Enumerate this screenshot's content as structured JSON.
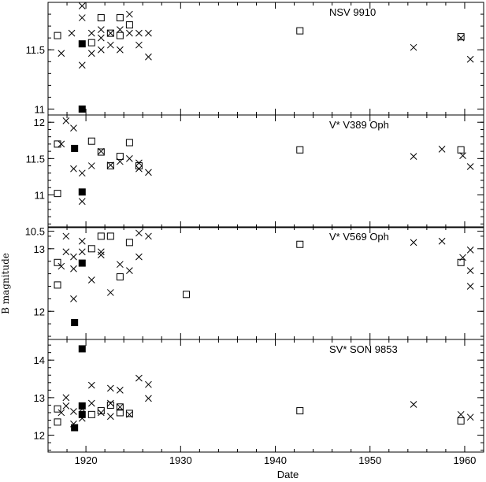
{
  "chart_data": {
    "type": "scatter",
    "xlabel": "Date",
    "ylabel": "B magnitude",
    "xlim": [
      1916,
      1962
    ],
    "x_ticks": [
      1920,
      1930,
      1940,
      1950,
      1960
    ],
    "y_inverted": true,
    "marker_legend": {
      "x": "cross",
      "open": "open square",
      "filled": "filled square"
    },
    "panels": [
      {
        "label": "NSV 9910",
        "ylim": [
          10.95,
          11.9
        ],
        "y_ticks": [
          11,
          11.5
        ],
        "y_tick_labels": [
          "11",
          "11.5"
        ],
        "series": [
          {
            "marker": "cross",
            "points": [
              [
                1917.4,
                11.47
              ],
              [
                1918.5,
                11.64
              ],
              [
                1919.6,
                11.87
              ],
              [
                1919.6,
                11.77
              ],
              [
                1919.6,
                11.37
              ],
              [
                1920.6,
                11.64
              ],
              [
                1920.6,
                11.47
              ],
              [
                1921.6,
                11.67
              ],
              [
                1921.6,
                11.6
              ],
              [
                1921.6,
                11.5
              ],
              [
                1922.6,
                11.64
              ],
              [
                1922.6,
                11.54
              ],
              [
                1923.6,
                11.67
              ],
              [
                1923.6,
                11.5
              ],
              [
                1924.6,
                11.8
              ],
              [
                1924.6,
                11.64
              ],
              [
                1925.6,
                11.64
              ],
              [
                1925.6,
                11.54
              ],
              [
                1926.6,
                11.64
              ],
              [
                1926.6,
                11.44
              ],
              [
                1954.6,
                11.52
              ],
              [
                1959.6,
                11.6
              ],
              [
                1960.6,
                11.42
              ]
            ]
          },
          {
            "marker": "open",
            "points": [
              [
                1917.0,
                11.62
              ],
              [
                1920.6,
                11.56
              ],
              [
                1921.6,
                11.77
              ],
              [
                1922.6,
                11.64
              ],
              [
                1923.6,
                11.77
              ],
              [
                1923.6,
                11.62
              ],
              [
                1924.6,
                11.71
              ],
              [
                1942.6,
                11.66
              ],
              [
                1959.6,
                11.61
              ]
            ]
          },
          {
            "marker": "filled",
            "points": [
              [
                1919.6,
                11.55
              ],
              [
                1919.6,
                11.0
              ]
            ]
          }
        ]
      },
      {
        "label": "V* V389 Oph",
        "ylim": [
          10.55,
          12.1
        ],
        "y_ticks": [
          10.5,
          11,
          11.5,
          12
        ],
        "y_tick_labels": [
          "10.5",
          "11",
          "11.5",
          "12"
        ],
        "series": [
          {
            "marker": "cross",
            "points": [
              [
                1917.4,
                11.7
              ],
              [
                1917.9,
                12.02
              ],
              [
                1918.7,
                11.92
              ],
              [
                1918.7,
                11.36
              ],
              [
                1919.6,
                11.3
              ],
              [
                1919.6,
                10.91
              ],
              [
                1920.6,
                11.4
              ],
              [
                1921.6,
                11.6
              ],
              [
                1922.6,
                11.41
              ],
              [
                1923.6,
                11.46
              ],
              [
                1924.6,
                11.5
              ],
              [
                1925.6,
                11.44
              ],
              [
                1925.6,
                11.36
              ],
              [
                1926.6,
                11.31
              ],
              [
                1954.6,
                11.53
              ],
              [
                1957.6,
                11.63
              ],
              [
                1959.8,
                11.54
              ],
              [
                1960.6,
                11.39
              ]
            ]
          },
          {
            "marker": "open",
            "points": [
              [
                1917.0,
                11.7
              ],
              [
                1917.0,
                11.02
              ],
              [
                1920.6,
                11.74
              ],
              [
                1921.6,
                11.59
              ],
              [
                1922.6,
                11.4
              ],
              [
                1923.6,
                11.53
              ],
              [
                1924.6,
                11.72
              ],
              [
                1925.6,
                11.4
              ],
              [
                1942.6,
                11.62
              ],
              [
                1959.6,
                11.62
              ]
            ]
          },
          {
            "marker": "filled",
            "points": [
              [
                1918.8,
                11.64
              ],
              [
                1919.6,
                11.04
              ]
            ]
          }
        ]
      },
      {
        "label": "V* V569 Oph",
        "ylim": [
          11.55,
          13.35
        ],
        "y_ticks": [
          12,
          13
        ],
        "y_tick_labels": [
          "12",
          "13"
        ],
        "series": [
          {
            "marker": "cross",
            "points": [
              [
                1917.4,
                12.72
              ],
              [
                1917.9,
                13.2
              ],
              [
                1917.9,
                12.95
              ],
              [
                1918.7,
                12.87
              ],
              [
                1918.7,
                12.68
              ],
              [
                1918.7,
                12.2
              ],
              [
                1919.6,
                13.12
              ],
              [
                1919.6,
                12.95
              ],
              [
                1920.6,
                12.5
              ],
              [
                1921.6,
                12.95
              ],
              [
                1921.6,
                12.9
              ],
              [
                1922.6,
                12.3
              ],
              [
                1923.6,
                12.75
              ],
              [
                1924.6,
                12.65
              ],
              [
                1925.6,
                13.25
              ],
              [
                1925.6,
                12.87
              ],
              [
                1926.6,
                13.2
              ],
              [
                1954.6,
                13.1
              ],
              [
                1957.6,
                13.12
              ],
              [
                1959.8,
                12.86
              ],
              [
                1960.6,
                12.98
              ],
              [
                1960.6,
                12.65
              ],
              [
                1960.6,
                12.4
              ]
            ]
          },
          {
            "marker": "open",
            "points": [
              [
                1917.0,
                12.78
              ],
              [
                1917.0,
                12.42
              ],
              [
                1920.6,
                13.0
              ],
              [
                1921.6,
                13.2
              ],
              [
                1922.6,
                13.2
              ],
              [
                1923.6,
                12.55
              ],
              [
                1924.6,
                13.1
              ],
              [
                1930.6,
                12.27
              ],
              [
                1942.6,
                13.07
              ],
              [
                1959.6,
                12.78
              ]
            ]
          },
          {
            "marker": "filled",
            "points": [
              [
                1919.6,
                12.77
              ],
              [
                1918.8,
                11.82
              ]
            ]
          }
        ]
      },
      {
        "label": "SV* SON 9853",
        "ylim": [
          11.55,
          14.55
        ],
        "y_ticks": [
          12,
          13,
          14
        ],
        "y_tick_labels": [
          "12",
          "13",
          "14"
        ],
        "series": [
          {
            "marker": "cross",
            "points": [
              [
                1917.4,
                12.6
              ],
              [
                1917.9,
                13.0
              ],
              [
                1917.9,
                12.78
              ],
              [
                1918.7,
                12.63
              ],
              [
                1918.7,
                12.3
              ],
              [
                1919.6,
                12.7
              ],
              [
                1919.6,
                12.45
              ],
              [
                1920.6,
                13.33
              ],
              [
                1920.6,
                12.85
              ],
              [
                1921.6,
                12.6
              ],
              [
                1922.6,
                13.25
              ],
              [
                1922.6,
                12.85
              ],
              [
                1922.6,
                12.5
              ],
              [
                1923.6,
                13.2
              ],
              [
                1923.6,
                12.75
              ],
              [
                1924.6,
                12.55
              ],
              [
                1925.6,
                13.52
              ],
              [
                1926.6,
                13.35
              ],
              [
                1926.6,
                12.98
              ],
              [
                1954.6,
                12.82
              ],
              [
                1959.6,
                12.55
              ],
              [
                1960.6,
                12.48
              ]
            ]
          },
          {
            "marker": "open",
            "points": [
              [
                1917.0,
                12.7
              ],
              [
                1917.0,
                12.35
              ],
              [
                1920.6,
                12.55
              ],
              [
                1921.6,
                12.65
              ],
              [
                1922.6,
                12.8
              ],
              [
                1923.6,
                12.75
              ],
              [
                1923.6,
                12.6
              ],
              [
                1924.6,
                12.58
              ],
              [
                1942.6,
                12.65
              ],
              [
                1959.6,
                12.38
              ]
            ]
          },
          {
            "marker": "filled",
            "points": [
              [
                1919.6,
                14.3
              ],
              [
                1919.6,
                12.78
              ],
              [
                1919.6,
                12.55
              ],
              [
                1918.8,
                12.2
              ]
            ]
          }
        ]
      }
    ]
  }
}
